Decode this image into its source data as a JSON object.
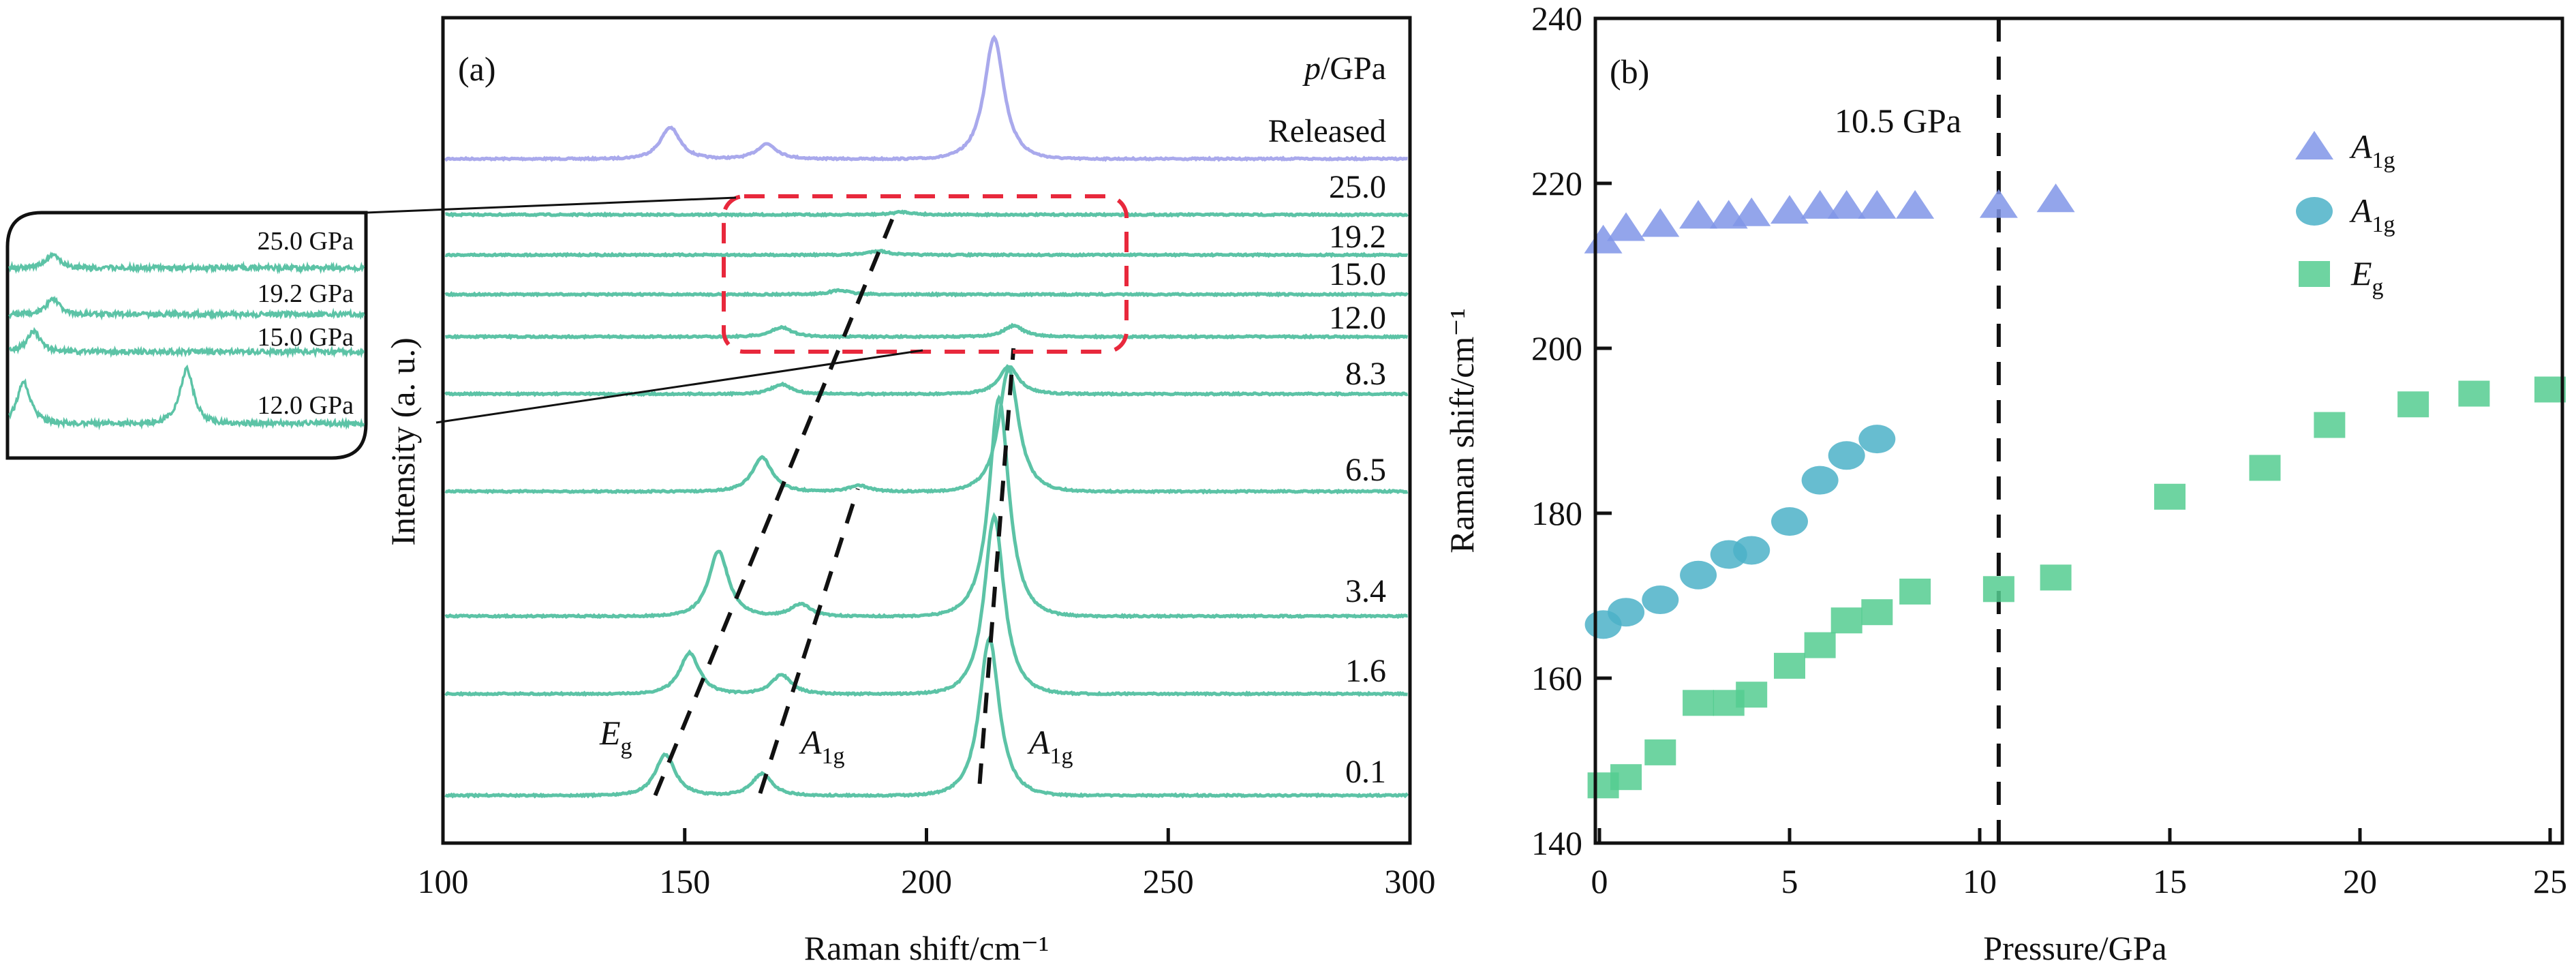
{
  "chart_data": [
    {
      "panel_label": "(a)",
      "type": "line",
      "xlabel": "Raman shift/cm⁻¹",
      "ylabel": "Intensity (a. u.)",
      "xlim": [
        100,
        300
      ],
      "xticks": [
        100,
        150,
        200,
        250,
        300
      ],
      "legend_header": "p/GPa",
      "legend_header_italic": "p",
      "legend_header_rest": "/GPa",
      "colors": {
        "pressurized": "#5cc3a6",
        "released": "#a9a9ec",
        "guide": "#111111",
        "highlight_box": "#e8283c"
      },
      "peak_labels": [
        {
          "main": "E",
          "sub": "g",
          "x": 146
        },
        {
          "main": "A",
          "sub": "1g",
          "x": 166
        },
        {
          "main": "A",
          "sub": "1g",
          "x": 213
        }
      ],
      "series": [
        {
          "label": "Released",
          "peaks": [
            {
              "x": 147,
              "intensity": 46
            },
            {
              "x": 167,
              "intensity": 22
            },
            {
              "x": 214,
              "intensity": 178
            }
          ]
        },
        {
          "label": "25.0",
          "peaks": [
            {
              "x": 195,
              "intensity": 4
            }
          ]
        },
        {
          "label": "19.2",
          "peaks": [
            {
              "x": 190,
              "intensity": 6
            }
          ]
        },
        {
          "label": "15.0",
          "peaks": [
            {
              "x": 182,
              "intensity": 6
            }
          ]
        },
        {
          "label": "12.0",
          "peaks": [
            {
              "x": 170,
              "intensity": 14
            },
            {
              "x": 218,
              "intensity": 16
            }
          ]
        },
        {
          "label": "8.3",
          "peaks": [
            {
              "x": 170,
              "intensity": 14
            },
            {
              "x": 217,
              "intensity": 40
            }
          ]
        },
        {
          "label": "6.5",
          "peaks": [
            {
              "x": 166,
              "intensity": 50
            },
            {
              "x": 186,
              "intensity": 9
            },
            {
              "x": 217,
              "intensity": 180
            }
          ]
        },
        {
          "label": "3.4",
          "peaks": [
            {
              "x": 157,
              "intensity": 95
            },
            {
              "x": 174,
              "intensity": 18
            },
            {
              "x": 215,
              "intensity": 320
            }
          ]
        },
        {
          "label": "1.6",
          "peaks": [
            {
              "x": 151,
              "intensity": 60
            },
            {
              "x": 170,
              "intensity": 28
            },
            {
              "x": 214,
              "intensity": 260
            }
          ]
        },
        {
          "label": "0.1",
          "peaks": [
            {
              "x": 146,
              "intensity": 60
            },
            {
              "x": 166,
              "intensity": 32
            },
            {
              "x": 213,
              "intensity": 230
            }
          ]
        }
      ],
      "inset": {
        "series": [
          {
            "label": "25.0 GPa",
            "peaks": [
              {
                "x": 167,
                "intensity": 18
              }
            ]
          },
          {
            "label": "19.2 GPa",
            "peaks": [
              {
                "x": 167,
                "intensity": 22
              }
            ]
          },
          {
            "label": "15.0 GPa",
            "peaks": [
              {
                "x": 164,
                "intensity": 30
              }
            ]
          },
          {
            "label": "12.0 GPa",
            "peaks": [
              {
                "x": 162.5,
                "intensity": 60
              },
              {
                "x": 187.5,
                "intensity": 80
              }
            ]
          }
        ]
      }
    },
    {
      "panel_label": "(b)",
      "type": "scatter",
      "xlabel": "Pressure/GPa",
      "ylabel": "Raman shift/cm⁻¹",
      "xlim": [
        0,
        25
      ],
      "ylim": [
        140,
        240
      ],
      "xticks": [
        0,
        5,
        10,
        15,
        20,
        25
      ],
      "yticks": [
        140,
        160,
        180,
        200,
        220,
        240
      ],
      "legend_position": "top-right",
      "annotation": {
        "text": "10.5 GPa",
        "x": 10.5
      },
      "series": [
        {
          "name_main": "A",
          "name_sub": "1g",
          "marker": "triangle",
          "color": "#8095e8",
          "x": [
            0.1,
            0.7,
            1.6,
            2.6,
            3.4,
            4.0,
            5.0,
            5.8,
            6.5,
            7.3,
            8.3,
            10.5,
            12.0
          ],
          "y": [
            213.0,
            214.5,
            215.0,
            216.0,
            216.0,
            216.3,
            216.6,
            217.2,
            217.2,
            217.2,
            217.2,
            217.3,
            218.0
          ]
        },
        {
          "name_main": "A",
          "name_sub": "1g",
          "marker": "circle",
          "color": "#4cb2c8",
          "x": [
            0.1,
            0.7,
            1.6,
            2.6,
            3.4,
            4.0,
            5.0,
            5.8,
            6.5,
            7.3
          ],
          "y": [
            166.5,
            168.0,
            169.5,
            172.5,
            175.0,
            175.5,
            179.0,
            184.0,
            187.0,
            189.0
          ]
        },
        {
          "name_main": "E",
          "name_sub": "g",
          "marker": "square",
          "color": "#55cc90",
          "x": [
            0.1,
            0.7,
            1.6,
            2.6,
            3.4,
            4.0,
            5.0,
            5.8,
            6.5,
            7.3,
            8.3,
            10.5,
            12.0,
            15.0,
            17.5,
            19.2,
            21.4,
            23.0,
            25.0
          ],
          "y": [
            147.0,
            148.0,
            151.0,
            157.0,
            157.0,
            158.0,
            161.5,
            164.0,
            167.0,
            168.0,
            170.5,
            170.8,
            172.2,
            182.0,
            185.5,
            190.7,
            193.2,
            194.5,
            195.0
          ]
        }
      ]
    }
  ]
}
